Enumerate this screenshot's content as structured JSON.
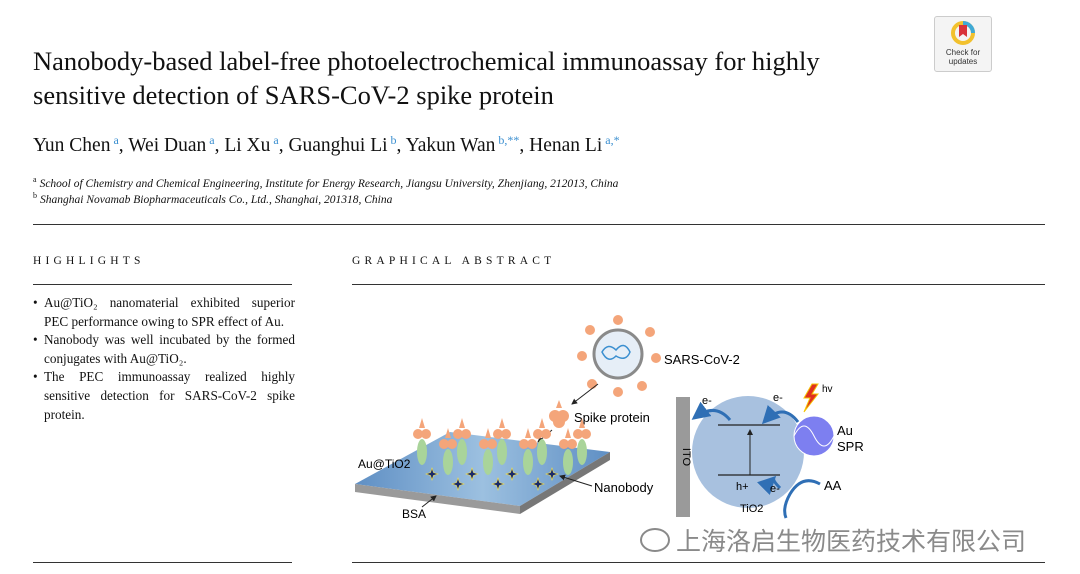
{
  "title": "Nanobody-based label-free photoelectrochemical immunoassay for highly sensitive detection of SARS-CoV-2 spike protein",
  "check_updates": {
    "line1": "Check for",
    "line2": "updates"
  },
  "authors": [
    {
      "name": "Yun Chen",
      "sup": "a"
    },
    {
      "name": "Wei Duan",
      "sup": "a"
    },
    {
      "name": "Li Xu",
      "sup": "a"
    },
    {
      "name": "Guanghui Li",
      "sup": "b"
    },
    {
      "name": "Yakun Wan",
      "sup": "b,**"
    },
    {
      "name": "Henan Li",
      "sup": "a,*"
    }
  ],
  "affiliations": [
    {
      "sup": "a",
      "text": "School of Chemistry and Chemical Engineering, Institute for Energy Research, Jiangsu University, Zhenjiang, 212013, China"
    },
    {
      "sup": "b",
      "text": "Shanghai Novamab Biopharmaceuticals Co., Ltd., Shanghai, 201318, China"
    }
  ],
  "highlights_heading": "HIGHLIGHTS",
  "highlights": [
    "Au@TiO₂ nanomaterial exhibited superior PEC performance owing to SPR effect of Au.",
    "Nanobody was well incubated by the formed conjugates with Au@TiO₂.",
    "The PEC immunoassay realized highly sensitive detection for SARS-CoV-2 spike protein."
  ],
  "graphical_abstract_heading": "GRAPHICAL ABSTRACT",
  "figure_labels": {
    "virus": "SARS-CoV-2",
    "spike": "Spike protein",
    "substrate": "Au@TiO2",
    "bsa": "BSA",
    "nanobody": "Nanobody",
    "ito": "ITO",
    "e1": "e-",
    "e2": "e-",
    "e3": "e-",
    "hole": "h+",
    "tio2": "TiO2",
    "au": "Au",
    "spr": "SPR",
    "aa": "AA",
    "hv": "hv"
  },
  "watermark": "上海洛启生物医药技术有限公司",
  "colors": {
    "link": "#3b8fd0",
    "substrate": "#6f9fcf",
    "spike": "#f4a57a",
    "nanobody": "#a9d49a",
    "tio2": "#a8c1df",
    "au": "#7d7ff0"
  }
}
